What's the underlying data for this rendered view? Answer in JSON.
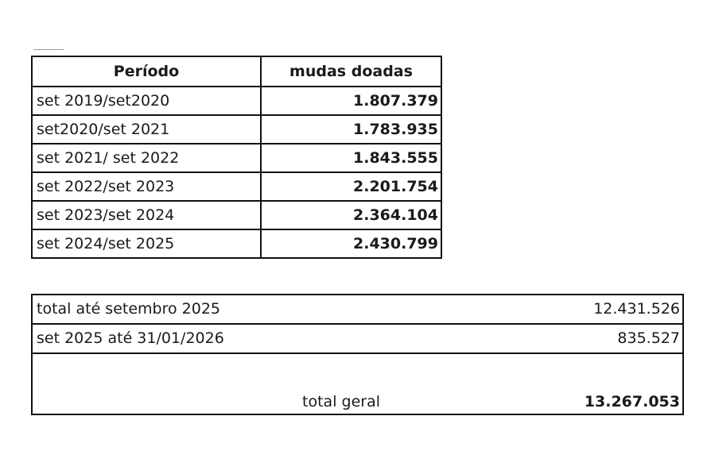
{
  "donations_table": {
    "headers": {
      "period": "Período",
      "seedlings": "mudas doadas"
    },
    "rows": [
      {
        "period": "set 2019/set2020",
        "seedlings": "1.807.379"
      },
      {
        "period": "set2020/set 2021",
        "seedlings": "1.783.935"
      },
      {
        "period": "set 2021/ set 2022",
        "seedlings": "1.843.555"
      },
      {
        "period": "set 2022/set 2023",
        "seedlings": "2.201.754"
      },
      {
        "period": "set 2023/set 2024",
        "seedlings": "2.364.104"
      },
      {
        "period": "set 2024/set 2025",
        "seedlings": "2.430.799"
      }
    ]
  },
  "totals_table": {
    "rows": [
      {
        "label": "total até setembro 2025",
        "value": "12.431.526"
      },
      {
        "label": "set 2025 até 31/01/2026",
        "value": "835.527"
      }
    ],
    "grand_total": {
      "label": "total geral",
      "value": "13.267.053"
    }
  }
}
